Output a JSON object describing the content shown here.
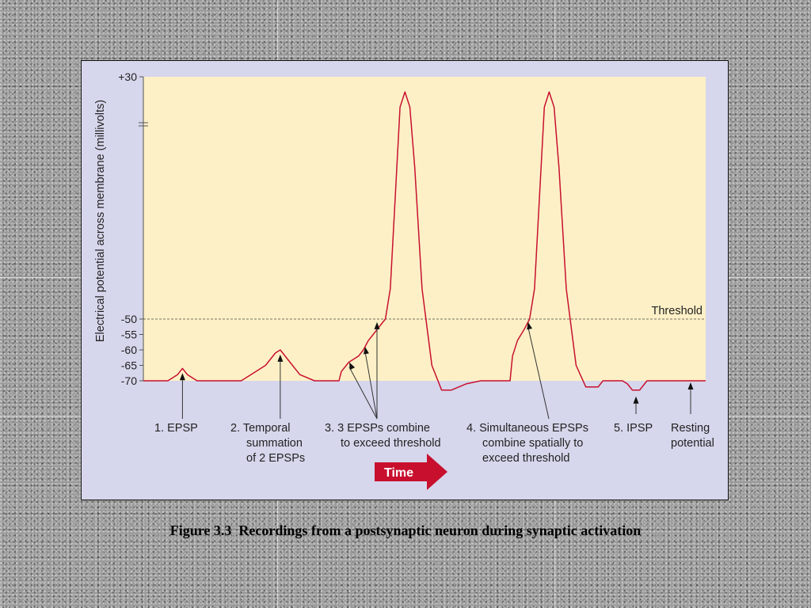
{
  "caption": "Figure 3.3  Recordings from a postsynaptic neuron during synaptic activation",
  "chart_data": {
    "type": "line",
    "ylabel": "Electrical potential across membrane (millivolts)",
    "xlabel": "",
    "yticks": [
      "+30",
      "-50",
      "-55",
      "-60",
      "-65",
      "-70"
    ],
    "ytick_values": [
      30,
      -50,
      -55,
      -60,
      -65,
      -70
    ],
    "axis_break": true,
    "threshold": {
      "value": -50,
      "label": "Threshold"
    },
    "time_arrow_label": "Time",
    "events": [
      {
        "lines": [
          "1.  EPSP"
        ]
      },
      {
        "lines": [
          "2. Temporal",
          "summation",
          "of 2 EPSPs"
        ]
      },
      {
        "lines": [
          "3. 3 EPSPs combine",
          "to exceed threshold"
        ]
      },
      {
        "lines": [
          "4. Simultaneous EPSPs",
          "combine spatially to",
          "exceed threshold"
        ]
      },
      {
        "lines": [
          "5. IPSP"
        ]
      },
      {
        "lines": [
          "Resting",
          "potential"
        ]
      }
    ],
    "series": [
      {
        "points": [
          [
            0,
            -70
          ],
          [
            20,
            -70
          ],
          [
            28,
            -68
          ],
          [
            32,
            -66
          ],
          [
            36,
            -68
          ],
          [
            44,
            -70
          ],
          [
            80,
            -70
          ],
          [
            88,
            -68
          ],
          [
            100,
            -65
          ],
          [
            108,
            -61
          ],
          [
            112,
            -60
          ],
          [
            120,
            -64
          ],
          [
            128,
            -68
          ],
          [
            140,
            -70
          ],
          [
            160,
            -70
          ],
          [
            162,
            -67
          ],
          [
            168,
            -64
          ],
          [
            176,
            -62
          ],
          [
            180,
            -60
          ],
          [
            184,
            -57
          ],
          [
            188,
            -55
          ],
          [
            192,
            -53
          ],
          [
            196,
            -51
          ],
          [
            198,
            -50
          ],
          [
            202,
            -40
          ],
          [
            206,
            -10
          ],
          [
            210,
            20
          ],
          [
            214,
            25
          ],
          [
            218,
            20
          ],
          [
            222,
            0
          ],
          [
            228,
            -40
          ],
          [
            236,
            -65
          ],
          [
            244,
            -73
          ],
          [
            252,
            -73
          ],
          [
            264,
            -71
          ],
          [
            276,
            -70
          ],
          [
            300,
            -70
          ],
          [
            302,
            -62
          ],
          [
            306,
            -57
          ],
          [
            312,
            -53
          ],
          [
            316,
            -50
          ],
          [
            320,
            -40
          ],
          [
            324,
            -10
          ],
          [
            328,
            20
          ],
          [
            332,
            25
          ],
          [
            336,
            20
          ],
          [
            340,
            0
          ],
          [
            346,
            -40
          ],
          [
            354,
            -65
          ],
          [
            362,
            -72
          ],
          [
            372,
            -72
          ],
          [
            376,
            -70
          ],
          [
            392,
            -70
          ],
          [
            396,
            -71
          ],
          [
            400,
            -73
          ],
          [
            406,
            -73
          ],
          [
            412,
            -70
          ],
          [
            460,
            -70
          ]
        ]
      }
    ],
    "colors": {
      "trace": "#c8102e",
      "plot_bg": "#fdf0c6",
      "panel_bg": "#d6d7ec",
      "arrow": "#c8102e"
    }
  }
}
